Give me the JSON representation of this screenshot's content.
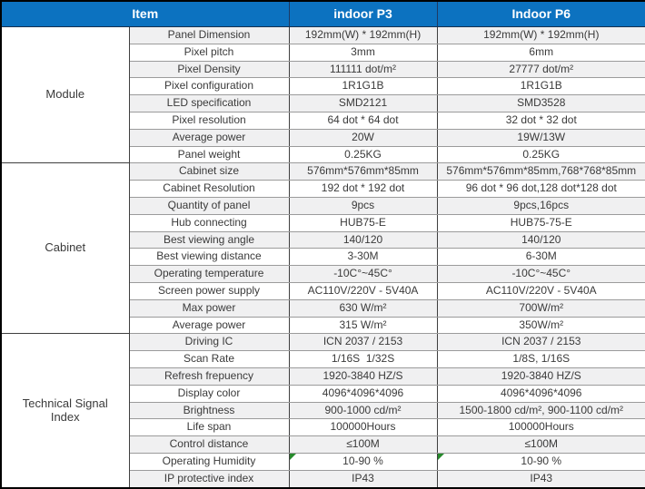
{
  "colors": {
    "header_bg": "#0c72c0",
    "header_text": "#ffffff",
    "row_tint": "#f0f0f1",
    "row_white": "#ffffff",
    "flag_green": "#268a2b",
    "border_dark": "#000000"
  },
  "table": {
    "header": {
      "item": "Item",
      "p3": "indoor P3",
      "p6": "Indoor P6"
    },
    "sections": [
      {
        "name": "module",
        "label": "Module",
        "rows": [
          {
            "item": "Panel Dimension",
            "p3": "192mm(W) * 192mm(H)",
            "p6": "192mm(W) * 192mm(H)"
          },
          {
            "item": "Pixel pitch",
            "p3": "3mm",
            "p6": "6mm"
          },
          {
            "item": "Pixel Density",
            "p3": "111111 dot/m²",
            "p6": "27777 dot/m²"
          },
          {
            "item": "Pixel configuration",
            "p3": "1R1G1B",
            "p6": "1R1G1B"
          },
          {
            "item": "LED specification",
            "p3": "SMD2121",
            "p6": "SMD3528"
          },
          {
            "item": "Pixel resolution",
            "p3": "64 dot * 64 dot",
            "p6": "32 dot * 32 dot"
          },
          {
            "item": "Average power",
            "p3": "20W",
            "p6": "19W/13W"
          },
          {
            "item": "Panel weight",
            "p3": "0.25KG",
            "p6": "0.25KG"
          }
        ]
      },
      {
        "name": "cabinet",
        "label": "Cabinet",
        "rows": [
          {
            "item": "Cabinet size",
            "p3": "576mm*576mm*85mm",
            "p6": "576mm*576mm*85mm,768*768*85mm"
          },
          {
            "item": "Cabinet Resolution",
            "p3": "192 dot * 192 dot",
            "p6": "96 dot * 96 dot,128 dot*128 dot"
          },
          {
            "item": "Quantity of panel",
            "p3": "9pcs",
            "p6": "9pcs,16pcs"
          },
          {
            "item": "Hub connecting",
            "p3": "HUB75-E",
            "p6": "HUB75-75-E"
          },
          {
            "item": "Best viewing angle",
            "p3": "140/120",
            "p6": "140/120"
          },
          {
            "item": "Best viewing distance",
            "p3": "3-30M",
            "p6": "6-30M"
          },
          {
            "item": "Operating temperature",
            "p3": "-10C°~45C°",
            "p6": "-10C°~45C°"
          },
          {
            "item": "Screen power supply",
            "p3": "AC110V/220V - 5V40A",
            "p6": "AC110V/220V - 5V40A"
          },
          {
            "item": "Max power",
            "p3": "630 W/m²",
            "p6": "700W/m²"
          },
          {
            "item": "Average power",
            "p3": "315 W/m²",
            "p6": "350W/m²"
          }
        ]
      },
      {
        "name": "technical-signal-index",
        "label": "Technical Signal Index",
        "rows": [
          {
            "item": "Driving IC",
            "p3": "ICN 2037 / 2153",
            "p6": "ICN 2037 / 2153"
          },
          {
            "item": "Scan Rate",
            "p3": "1/16S  1/32S",
            "p6": "1/8S, 1/16S"
          },
          {
            "item": "Refresh frepuency",
            "p3": "1920-3840 HZ/S",
            "p6": "1920-3840 HZ/S"
          },
          {
            "item": "Display color",
            "p3": "4096*4096*4096",
            "p6": "4096*4096*4096"
          },
          {
            "item": "Brightness",
            "p3": "900-1000 cd/m²",
            "p6": "1500-1800 cd/m², 900-1100 cd/m²"
          },
          {
            "item": "Life span",
            "p3": "100000Hours",
            "p6": "100000Hours"
          },
          {
            "item": "Control distance",
            "p3": "≤100M",
            "p6": "≤100M"
          },
          {
            "item": "Operating Humidity",
            "p3": "10-90 %",
            "p6": "10-90 %",
            "flag": true
          },
          {
            "item": "IP protective index",
            "p3": "IP43",
            "p6": "IP43"
          }
        ]
      }
    ]
  }
}
